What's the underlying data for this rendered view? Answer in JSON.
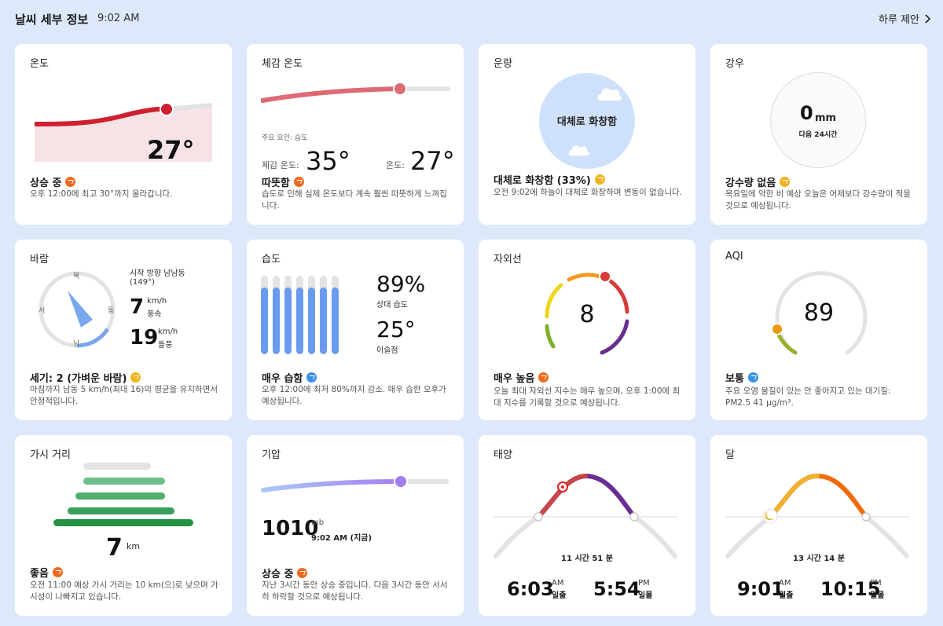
{
  "header": {
    "title": "날씨 세부 정보",
    "time": "9:02 AM",
    "suggest": "하루 제안"
  },
  "temperature": {
    "title": "온도",
    "value": "27°",
    "status": "상승 중",
    "desc": "오후 12:00에 최고 30°까지 올라갑니다."
  },
  "feels": {
    "title": "체감 온도",
    "factor": "주요 요인: 습도",
    "feels_label": "체감 온도:",
    "feels_value": "35°",
    "temp_label": "온도:",
    "temp_value": "27°",
    "status": "따뜻함",
    "desc": "습도로 인해 실제 온도보다 계속 훨씬 따뜻하게 느껴집니다."
  },
  "cloud": {
    "title": "운량",
    "center": "대체로 화창함",
    "status": "대체로 화창함 (33%)",
    "desc": "오전 9:02에 하늘이 대체로 화창하며 변동이 없습니다."
  },
  "rain": {
    "title": "강우",
    "value": "0",
    "unit": "mm",
    "sub": "다음 24시간",
    "status": "강수량 없음",
    "desc": "목요일에 약한 비 예상 오늘은 어제보다 강수량이 적을 것으로 예상됩니다."
  },
  "wind": {
    "title": "바람",
    "n": "북",
    "w": "서",
    "e": "동",
    "s": "남",
    "direction": "시작 방향 남남동",
    "degrees": "(149°)",
    "speed": "7",
    "speed_unit": "km/h",
    "speed_label": "풍속",
    "gust": "19",
    "gust_unit": "km/h",
    "gust_label": "돌풍",
    "status": "세기: 2 (가벼운 바람)",
    "desc": "아침까지 남동 5 km/h(최대 16)의 평균을 유지하면서 안정적입니다."
  },
  "humidity": {
    "title": "습도",
    "value": "89%",
    "value_label": "상대 습도",
    "dew": "25°",
    "dew_label": "이슬점",
    "bars": [
      0.85,
      0.85,
      0.85,
      0.85,
      0.85,
      0.85,
      0.85
    ],
    "status": "매우 습함",
    "desc": "오후 12:00에 최저 80%까지 감소. 매우 습한 오후가 예상됩니다."
  },
  "uv": {
    "title": "자외선",
    "value": "8",
    "status": "매우 높음",
    "desc": "오늘 최대 자외선 지수는 매우 높으며, 오후 1:00에 최대 지수를 기록할 것으로 예상됩니다."
  },
  "aqi": {
    "title": "AQI",
    "value": "89",
    "status": "보통",
    "desc": "주요 오염 물질이 있는 안 좋아지고 있는 대기질: PM2.5 41 µg/m³."
  },
  "visibility": {
    "title": "가시 거리",
    "value": "7",
    "unit": "km",
    "status": "좋음",
    "desc": "오전 11:00 예상 가시 거리는 10 km(으)로 낮으며 가시성이 나빠지고 있습니다."
  },
  "pressure": {
    "title": "기압",
    "value": "1010",
    "unit": "mb",
    "time": "9:02 AM (지금)",
    "status": "상승 중",
    "desc": "지난 3시간 동안 상승 중입니다. 다음 3시간 동안 서서히 하락할 것으로 예상됩니다."
  },
  "sun": {
    "title": "태양",
    "duration": "11 시간 51 분",
    "rise": "6:03",
    "rise_ampm": "AM",
    "rise_label": "일출",
    "set": "5:54",
    "set_ampm": "PM",
    "set_label": "일몰"
  },
  "moon": {
    "title": "달",
    "duration": "13 시간 14 분",
    "rise": "9:01",
    "rise_ampm": "AM",
    "rise_label": "월출",
    "set": "10:15",
    "set_ampm": "PM",
    "set_label": "월몰"
  },
  "colors": {
    "accent_orange": "#f06a1d",
    "temp_line": "#cf2030",
    "bar_blue": "#6a9af0",
    "pressure_purple": "#9a7ef0"
  }
}
